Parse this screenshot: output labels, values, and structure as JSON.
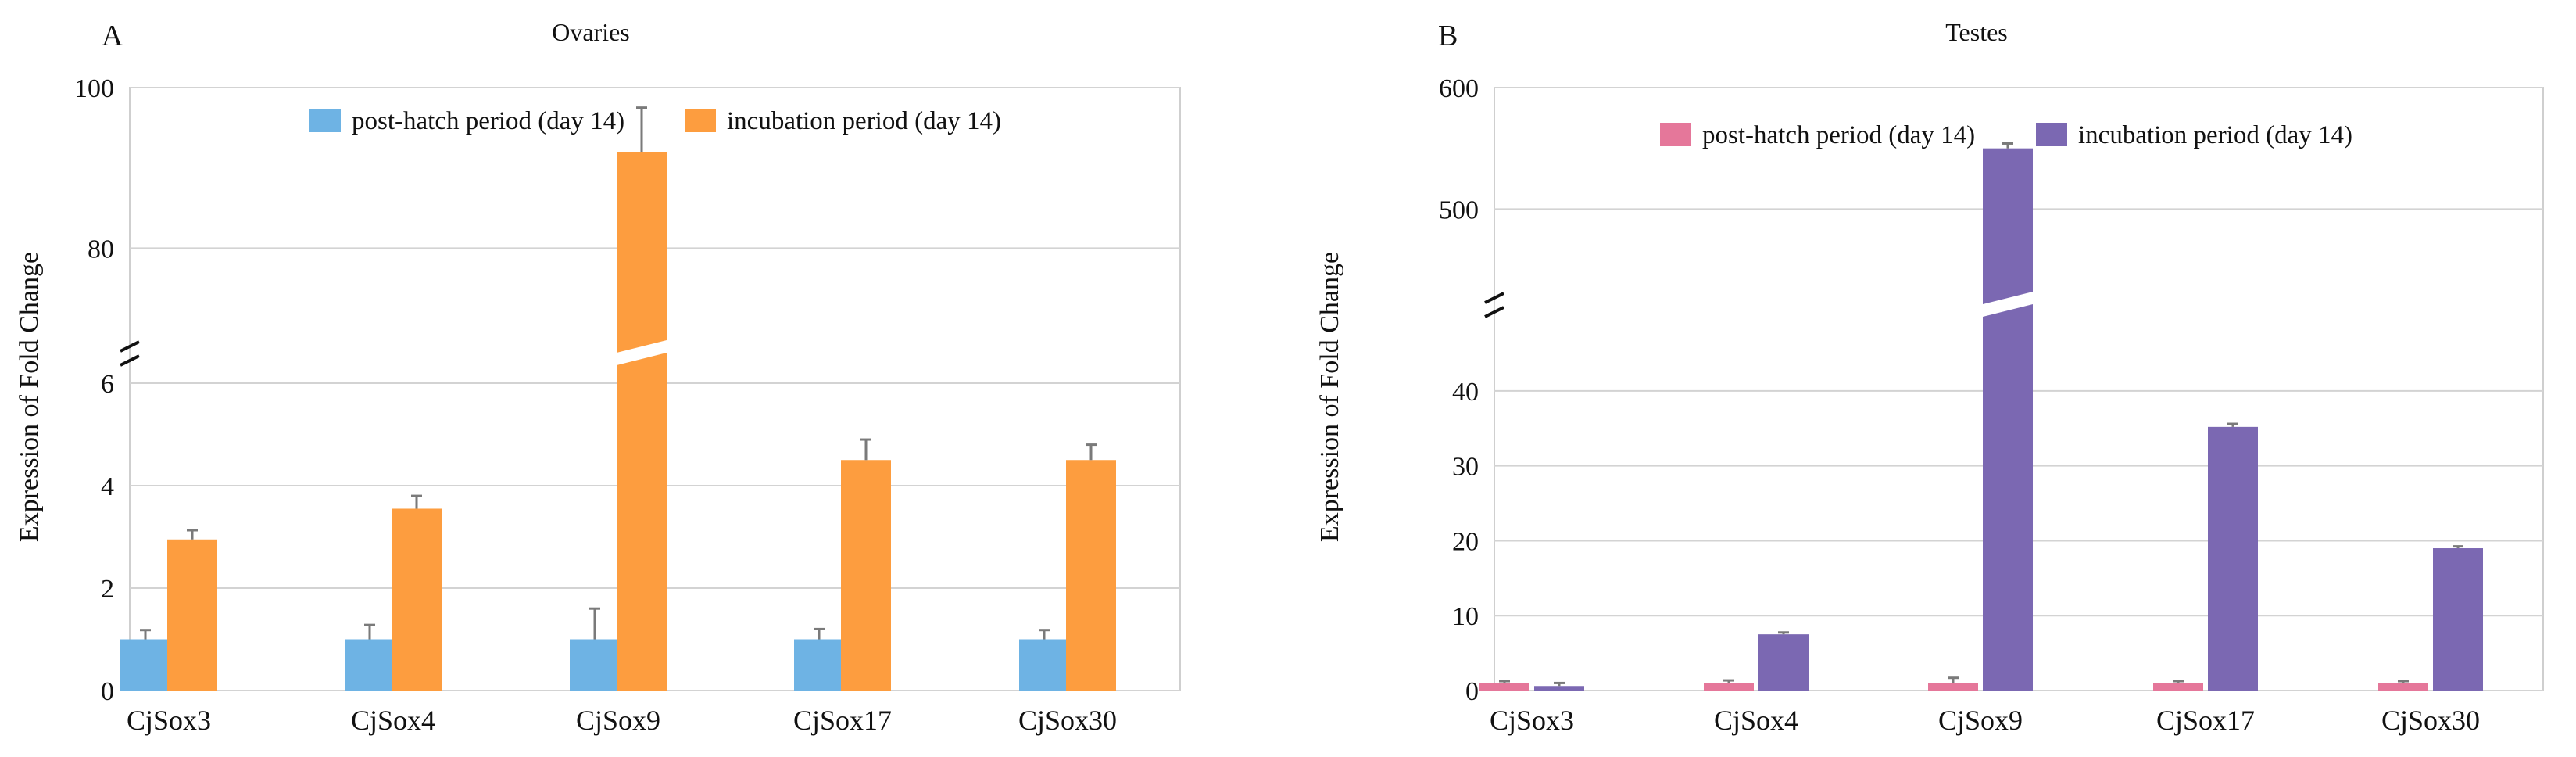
{
  "chart_data": [
    {
      "type": "bar",
      "panel_label": "A",
      "title": "Ovaries",
      "ylabel": "Expression of Fold Change",
      "xlabel": "",
      "categories": [
        "CjSox3",
        "CjSox4",
        "CjSox9",
        "CjSox17",
        "CjSox30"
      ],
      "series": [
        {
          "name": "post-hatch period (day 14)",
          "color": "#6EB3E4",
          "values": [
            1,
            1,
            1,
            1,
            1
          ],
          "errors": [
            0.18,
            0.28,
            0.6,
            0.2,
            0.18
          ]
        },
        {
          "name": "incubation period (day 14)",
          "color": "#FD9D3F",
          "values": [
            2.95,
            3.55,
            92,
            4.5,
            4.5
          ],
          "errors": [
            0.18,
            0.25,
            5.5,
            0.4,
            0.3
          ]
        }
      ],
      "axis_break": {
        "lower_range": [
          0,
          6
        ],
        "upper_range": [
          70,
          100
        ]
      },
      "y_ticks": [
        0,
        2,
        4,
        6,
        80,
        100
      ],
      "legend_position": "top"
    },
    {
      "type": "bar",
      "panel_label": "B",
      "title": "Testes",
      "ylabel": "Expression of Fold Change",
      "xlabel": "",
      "categories": [
        "CjSox3",
        "CjSox4",
        "CjSox9",
        "CjSox17",
        "CjSox30"
      ],
      "series": [
        {
          "name": "post-hatch period (day 14)",
          "color": "#E5779A",
          "values": [
            1,
            1,
            1,
            1,
            1
          ],
          "errors": [
            0.25,
            0.35,
            0.7,
            0.25,
            0.25
          ]
        },
        {
          "name": "incubation period (day 14)",
          "color": "#7B68B2",
          "values": [
            0.6,
            7.5,
            550,
            35.2,
            19
          ],
          "errors": [
            0.4,
            0.25,
            4,
            0.4,
            0.25
          ]
        }
      ],
      "axis_break": {
        "lower_range": [
          0,
          45
        ],
        "upper_range": [
          450,
          600
        ]
      },
      "y_ticks": [
        0,
        10,
        20,
        30,
        40,
        500,
        600
      ],
      "legend_position": "top"
    }
  ]
}
